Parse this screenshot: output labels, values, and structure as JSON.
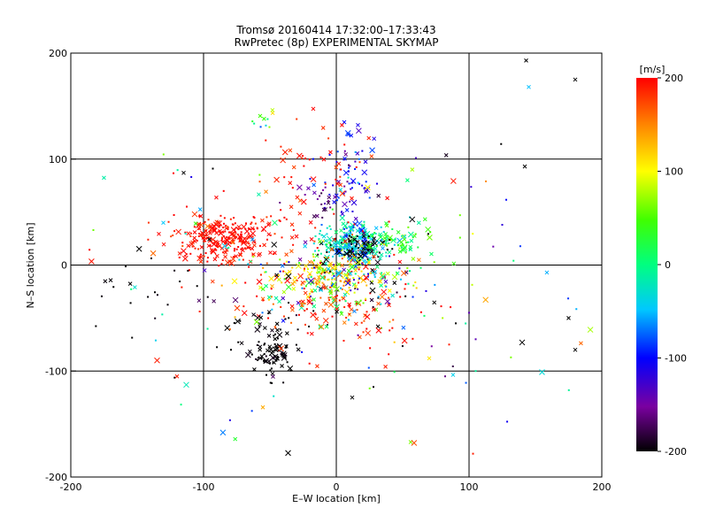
{
  "chart_data": {
    "type": "scatter",
    "title": "Tromsø 20160414 17:32:00–17:33:43",
    "subtitle": "RwPretec (8p) EXPERIMENTAL SKYMAP",
    "xlabel": "E–W location [km]",
    "ylabel": "N–S location [km]",
    "xlim": [
      -200,
      200
    ],
    "ylim": [
      -200,
      200
    ],
    "x_ticks": [
      -200,
      -100,
      0,
      100,
      200
    ],
    "y_ticks": [
      -200,
      -100,
      0,
      100,
      200
    ],
    "grid": true,
    "colorbar": {
      "label": "[m/s]",
      "range": [
        -200,
        200
      ],
      "ticks": [
        -200,
        -100,
        0,
        100,
        200
      ],
      "colormap": "rainbow (black-purple-blue-cyan-green-yellow-red)"
    },
    "clusters": [
      {
        "name": "west-red",
        "cx": -85,
        "cy": 25,
        "sx": 18,
        "sy": 10,
        "v": 195,
        "vs": 8,
        "n": 230
      },
      {
        "name": "west-red-spread",
        "cx": -55,
        "cy": 10,
        "sx": 45,
        "sy": 30,
        "v": 190,
        "vs": 15,
        "n": 110
      },
      {
        "name": "center-cyan",
        "cx": 12,
        "cy": 20,
        "sx": 14,
        "sy": 10,
        "v": -30,
        "vs": 30,
        "n": 220
      },
      {
        "name": "center-black",
        "cx": 18,
        "cy": 15,
        "sx": 10,
        "sy": 6,
        "v": -200,
        "vs": 5,
        "n": 70
      },
      {
        "name": "center-green",
        "cx": 45,
        "cy": 22,
        "sx": 12,
        "sy": 8,
        "v": 30,
        "vs": 25,
        "n": 60
      },
      {
        "name": "center-yellow",
        "cx": -5,
        "cy": -10,
        "sx": 20,
        "sy": 10,
        "v": 110,
        "vs": 30,
        "n": 120
      },
      {
        "name": "center-mixed",
        "cx": 5,
        "cy": -15,
        "sx": 30,
        "sy": 18,
        "v": 0,
        "vs": 130,
        "n": 200
      },
      {
        "name": "north-blue",
        "cx": 10,
        "cy": 80,
        "sx": 10,
        "sy": 25,
        "v": -110,
        "vs": 30,
        "n": 70
      },
      {
        "name": "north-purple",
        "cx": -15,
        "cy": 60,
        "sx": 10,
        "sy": 10,
        "v": -160,
        "vs": 20,
        "n": 25
      },
      {
        "name": "north-red",
        "cx": -20,
        "cy": 90,
        "sx": 25,
        "sy": 25,
        "v": 190,
        "vs": 10,
        "n": 45
      },
      {
        "name": "south-black",
        "cx": -45,
        "cy": -85,
        "sx": 8,
        "sy": 10,
        "v": -200,
        "vs": 5,
        "n": 70
      },
      {
        "name": "south-black-spread",
        "cx": -55,
        "cy": -65,
        "sx": 15,
        "sy": 15,
        "v": -200,
        "vs": 5,
        "n": 35
      },
      {
        "name": "south-red",
        "cx": -15,
        "cy": -40,
        "sx": 20,
        "sy": 12,
        "v": 185,
        "vs": 15,
        "n": 40
      },
      {
        "name": "southeast-red",
        "cx": 20,
        "cy": -50,
        "sx": 20,
        "sy": 20,
        "v": 185,
        "vs": 15,
        "n": 35
      },
      {
        "name": "top-cyan",
        "cx": -55,
        "cy": 138,
        "sx": 7,
        "sy": 5,
        "v": 20,
        "vs": 40,
        "n": 10
      },
      {
        "name": "west-black-sparse",
        "cx": -150,
        "cy": -25,
        "sx": 25,
        "sy": 20,
        "v": -200,
        "vs": 5,
        "n": 20
      },
      {
        "name": "background",
        "cx": 0,
        "cy": 0,
        "sx": 80,
        "sy": 70,
        "v": 0,
        "vs": 160,
        "n": 140
      }
    ],
    "outliers": [
      {
        "x": 143,
        "y": 193,
        "v": -200
      },
      {
        "x": 180,
        "y": 175,
        "v": -200
      },
      {
        "x": 145,
        "y": 168,
        "v": -50
      },
      {
        "x": 142,
        "y": 93,
        "v": -200
      },
      {
        "x": 125,
        "y": 38,
        "v": -120
      },
      {
        "x": -183,
        "y": 33,
        "v": 60
      },
      {
        "x": -115,
        "y": 87,
        "v": -200
      },
      {
        "x": -93,
        "y": 91,
        "v": -200
      },
      {
        "x": 105,
        "y": -100,
        "v": -10
      },
      {
        "x": 70,
        "y": -88,
        "v": 110
      },
      {
        "x": 82,
        "y": -105,
        "v": -160
      },
      {
        "x": 28,
        "y": -115,
        "v": -200
      },
      {
        "x": 12,
        "y": -125,
        "v": -200
      },
      {
        "x": 103,
        "y": -178,
        "v": 190
      },
      {
        "x": 140,
        "y": -73,
        "v": -200
      },
      {
        "x": 180,
        "y": -80,
        "v": -200
      },
      {
        "x": -135,
        "y": -90,
        "v": 190
      },
      {
        "x": -120,
        "y": -105,
        "v": 190
      },
      {
        "x": -113,
        "y": -113,
        "v": -20
      },
      {
        "x": 100,
        "y": -45,
        "v": -140
      },
      {
        "x": 105,
        "y": -70,
        "v": -140
      },
      {
        "x": 175,
        "y": -50,
        "v": -200
      },
      {
        "x": 85,
        "y": -75,
        "v": 190
      },
      {
        "x": 90,
        "y": -55,
        "v": -200
      }
    ]
  }
}
